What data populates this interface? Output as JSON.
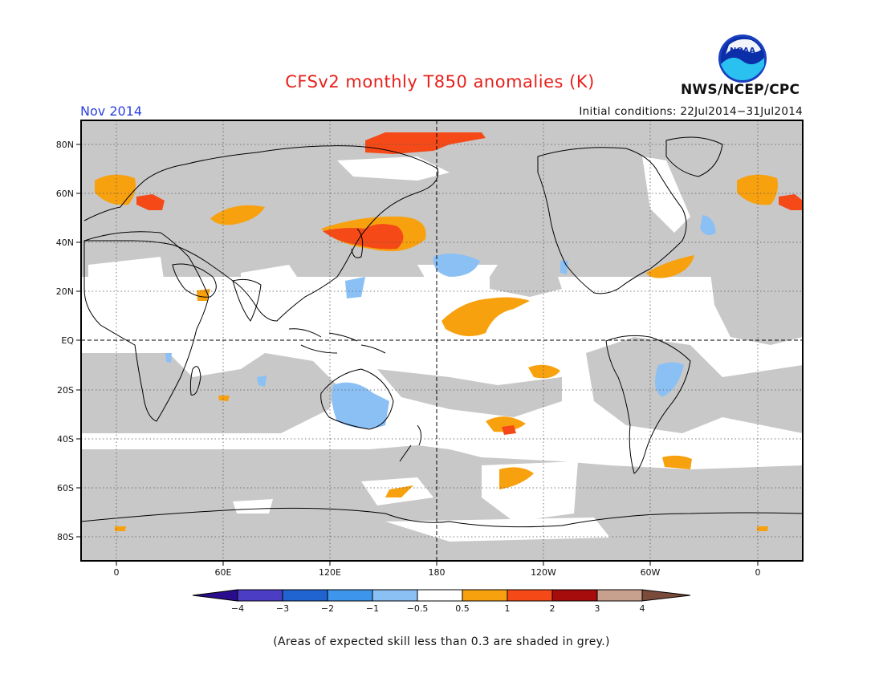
{
  "header": {
    "title": "CFSv2 monthly T850 anomalies (K)",
    "month": "Nov 2014",
    "initial_conditions": "Initial conditions: 22Jul2014−31Jul2014",
    "agency": "NWS/NCEP/CPC",
    "logo_text": "NOAA"
  },
  "map": {
    "lat_labels": [
      "80N",
      "60N",
      "40N",
      "20N",
      "EQ",
      "20S",
      "40S",
      "60S",
      "80S"
    ],
    "lon_labels": [
      "0",
      "60E",
      "120E",
      "180",
      "120W",
      "60W",
      "0"
    ],
    "skill_mask_color": "#c8c8c8",
    "ocean_color": "#ffffff"
  },
  "colorbar": {
    "tick_labels": [
      "−4",
      "−3",
      "−2",
      "−1",
      "−0.5",
      "0.5",
      "1",
      "2",
      "3",
      "4"
    ],
    "colors": {
      "lt_-4": "#2a0d8c",
      "-4_-3": "#4b3ec4",
      "-3_-2": "#1f64d0",
      "-2_-1": "#3e95ec",
      "-1_-0.5": "#8bc0f5",
      "-0.5_0.5": "#ffffff",
      "0.5_1": "#f8a10f",
      "1_2": "#f54a18",
      "2_3": "#a60c0c",
      "3_4": "#c8a08e",
      "gt_4": "#7a4a3a"
    }
  },
  "footer": {
    "note": "(Areas of expected skill less than 0.3 are shaded in grey.)"
  }
}
